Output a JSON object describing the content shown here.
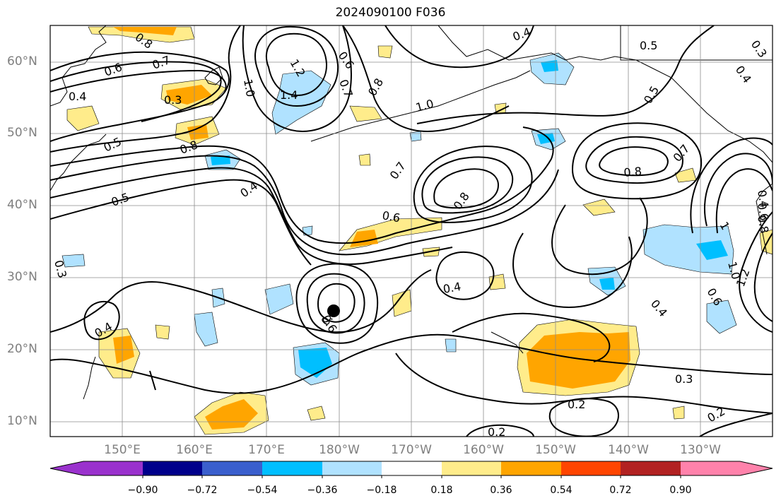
{
  "title": "2024090100 F036",
  "lat_labels": [
    "60°N",
    "50°N",
    "40°N",
    "30°N",
    "20°N",
    "10°N"
  ],
  "lon_labels": [
    "150°E",
    "160°E",
    "170°E",
    "180°W",
    "170°W",
    "160°W",
    "150°W",
    "140°W",
    "130°W"
  ],
  "colorbar": {
    "tick_labels": [
      "−0.90",
      "−0.72",
      "−0.54",
      "−0.36",
      "−0.18",
      "0.18",
      "0.36",
      "0.54",
      "0.72",
      "0.90"
    ],
    "colors": [
      "#9a32cd",
      "#00008b",
      "#3a5fcd",
      "#00bfff",
      "#b0e2ff",
      "#ffffff",
      "#ffec8b",
      "#ffa500",
      "#ff4500",
      "#b22222",
      "#ff82ab"
    ]
  },
  "contour_labels": [
    {
      "text": "0.8"
    },
    {
      "text": "0.6"
    },
    {
      "text": "0.7"
    },
    {
      "text": "0.4"
    },
    {
      "text": "0.3"
    },
    {
      "text": "0.5"
    },
    {
      "text": "0.8"
    },
    {
      "text": "1.0"
    },
    {
      "text": "1.2"
    },
    {
      "text": "1.4"
    },
    {
      "text": "0.6"
    },
    {
      "text": "0.7"
    },
    {
      "text": "0.8"
    },
    {
      "text": "0.4"
    },
    {
      "text": "0.5"
    },
    {
      "text": "0.4"
    },
    {
      "text": "0.5"
    },
    {
      "text": "1.0"
    },
    {
      "text": "0.7"
    },
    {
      "text": "0.8"
    },
    {
      "text": "0.6"
    },
    {
      "text": "0.4"
    },
    {
      "text": "0.5"
    },
    {
      "text": "0.4"
    },
    {
      "text": "0.6"
    },
    {
      "text": "0.3"
    },
    {
      "text": "0.2"
    },
    {
      "text": "0.2"
    },
    {
      "text": "0.3"
    },
    {
      "text": "0.4"
    },
    {
      "text": "0.8"
    },
    {
      "text": "0.7"
    },
    {
      "text": "0.5"
    },
    {
      "text": "0.4"
    },
    {
      "text": "1.0"
    },
    {
      "text": "0.6"
    },
    {
      "text": "1.2"
    },
    {
      "text": "1"
    },
    {
      "text": "0.2"
    },
    {
      "text": "0.3"
    },
    {
      "text": "0.4"
    },
    {
      "text": "0.6"
    },
    {
      "text": "0.8"
    }
  ]
}
